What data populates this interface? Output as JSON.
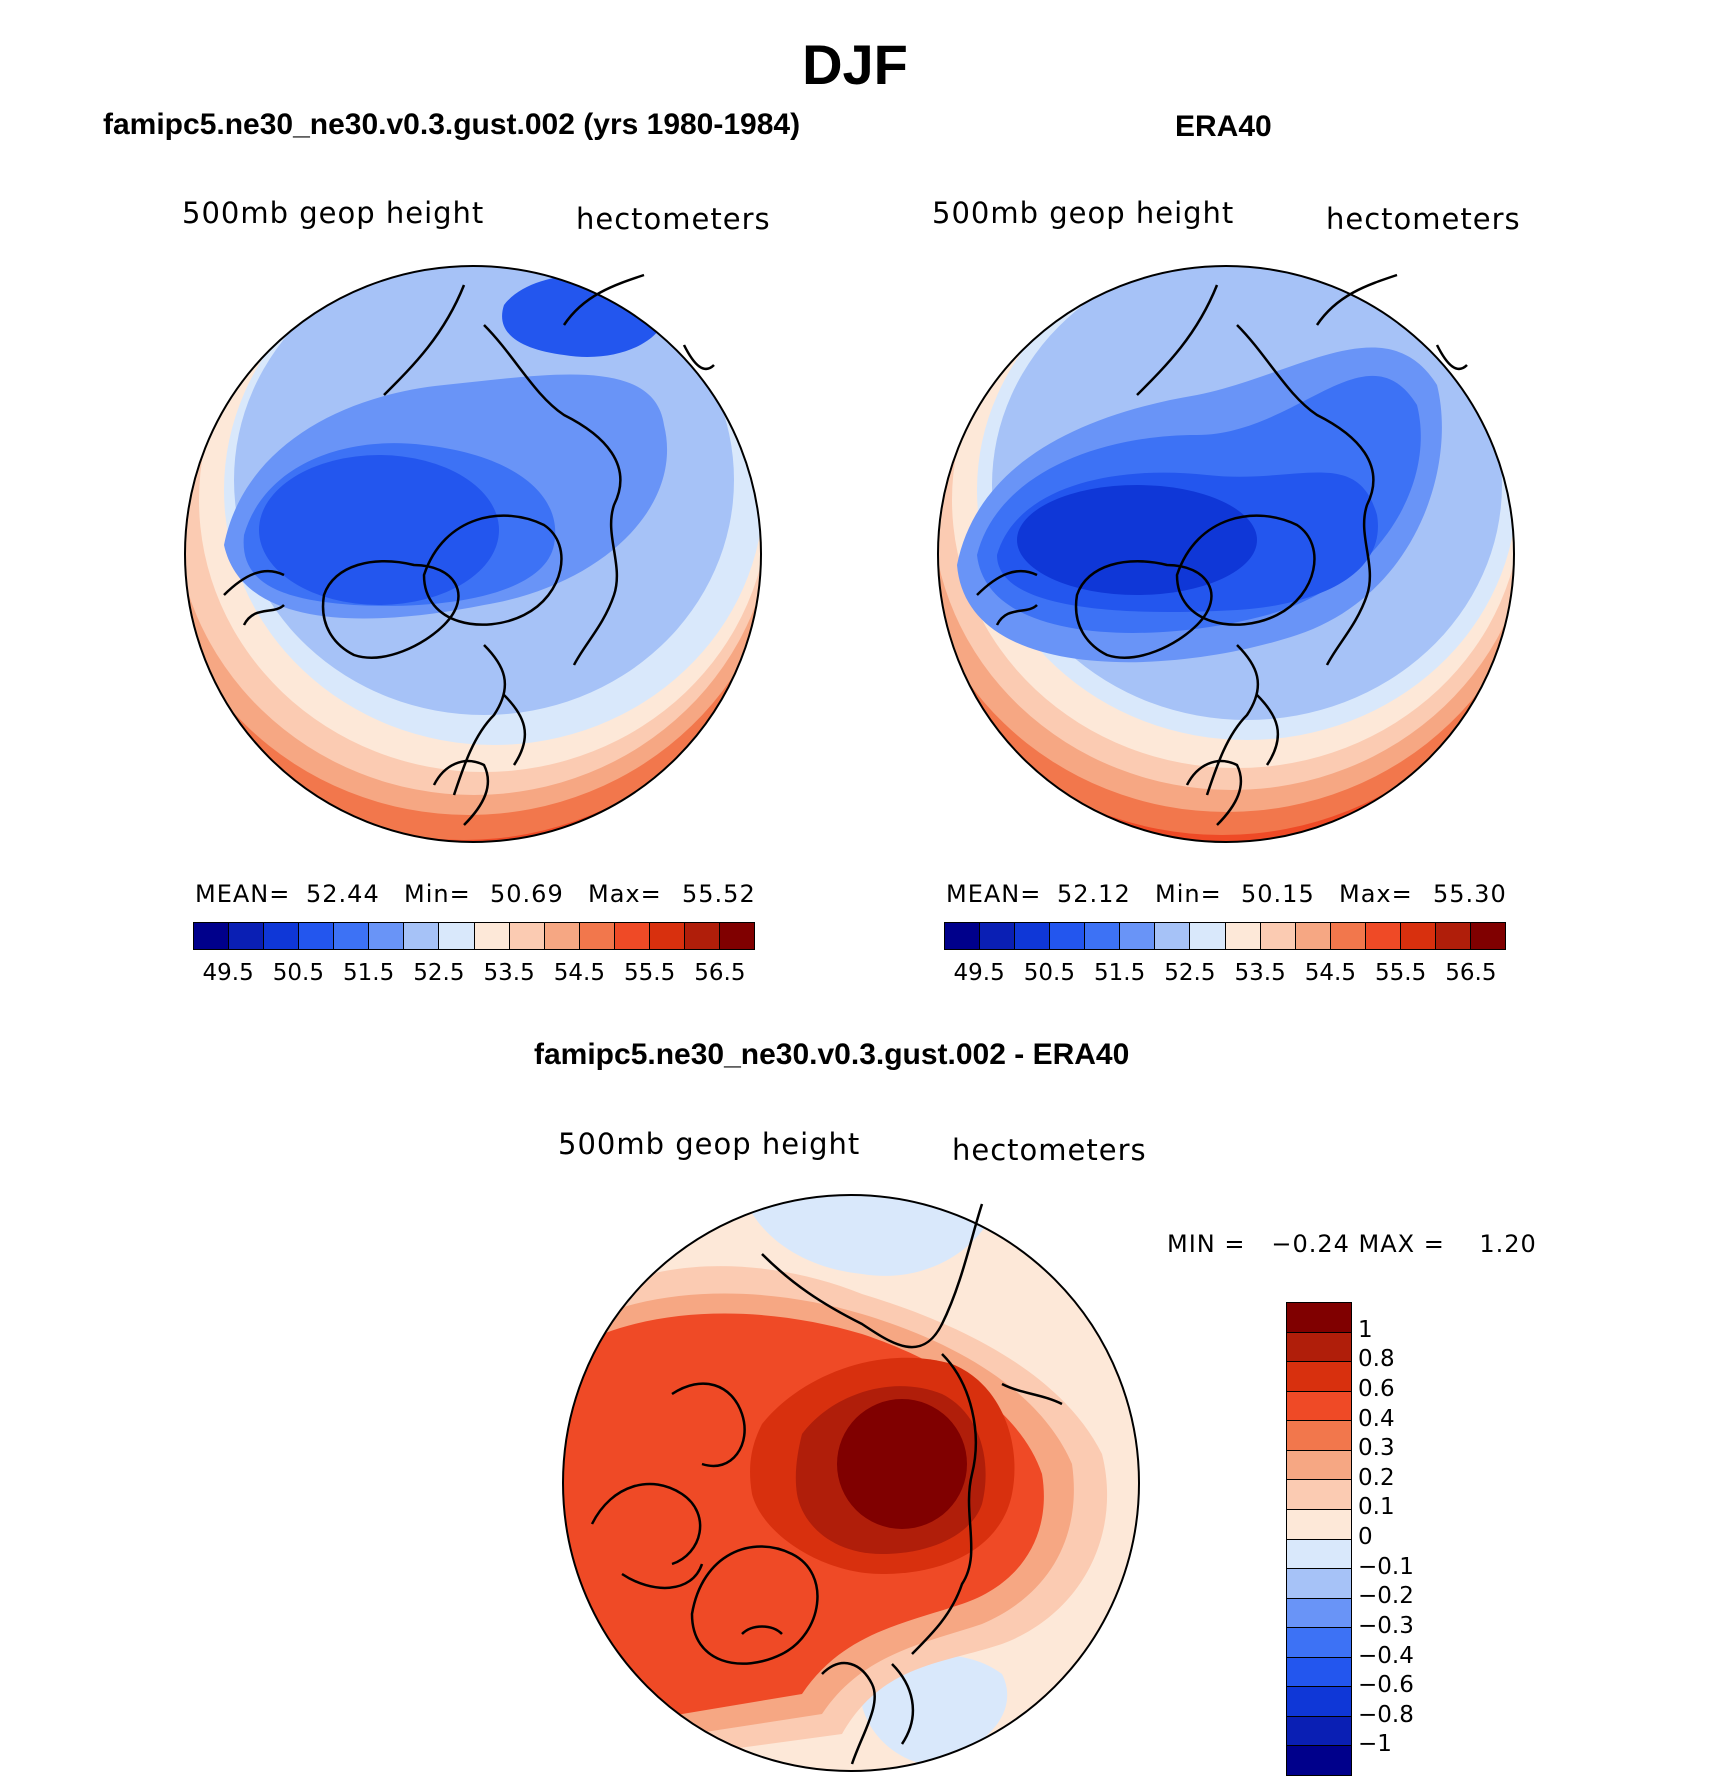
{
  "title": "DJF",
  "panels": [
    {
      "title": "famipc5.ne30_ne30.v0.3.gust.002 (yrs 1980-1984)",
      "left_label": "500mb geop height",
      "right_label": "hectometers",
      "stats": {
        "mean_label": "MEAN=",
        "mean": "52.44",
        "min_label": "Min=",
        "min": "50.69",
        "max_label": "Max=",
        "max": "55.52"
      }
    },
    {
      "title": "ERA40",
      "left_label": "500mb geop height",
      "right_label": "hectometers",
      "stats": {
        "mean_label": "MEAN=",
        "mean": "52.12",
        "min_label": "Min=",
        "min": "50.15",
        "max_label": "Max=",
        "max": "55.30"
      }
    }
  ],
  "diff_panel": {
    "title": "famipc5.ne30_ne30.v0.3.gust.002 - ERA40",
    "left_label": "500mb geop height",
    "right_label": "hectometers",
    "minmax": "MIN =   −0.24 MAX =    1.20"
  },
  "chart_data": [
    {
      "type": "heatmap",
      "projection": "north polar stereographic",
      "variable": "500mb geop height",
      "units": "hectometers",
      "mean": 52.44,
      "min": 50.69,
      "max": 55.52,
      "levels": [
        49.5,
        50.5,
        51.5,
        52.5,
        53.5,
        54.5,
        55.5,
        56.5
      ]
    },
    {
      "type": "heatmap",
      "projection": "north polar stereographic",
      "variable": "500mb geop height",
      "units": "hectometers",
      "mean": 52.12,
      "min": 50.15,
      "max": 55.3,
      "levels": [
        49.5,
        50.5,
        51.5,
        52.5,
        53.5,
        54.5,
        55.5,
        56.5
      ]
    },
    {
      "type": "heatmap",
      "projection": "north polar stereographic",
      "variable": "500mb geop height difference",
      "units": "hectometers",
      "min": -0.24,
      "max": 1.2,
      "levels": [
        "1",
        "0.8",
        "0.6",
        "0.4",
        "0.3",
        "0.2",
        "0.1",
        "0",
        "−0.1",
        "−0.2",
        "−0.3",
        "−0.4",
        "−0.6",
        "−0.8",
        "−1"
      ]
    }
  ],
  "colors": {
    "abs_scale": [
      "#00008b",
      "#0a1fb4",
      "#0f37d7",
      "#2356ee",
      "#3d72f5",
      "#6994f7",
      "#a6c2f7",
      "#d9e8fb",
      "#fde8d8",
      "#fbcbb2",
      "#f6a783",
      "#f2774c",
      "#ef4a26",
      "#d8300e",
      "#b01e0a",
      "#800000"
    ],
    "diff_scale": [
      "#800000",
      "#b01e0a",
      "#d8300e",
      "#ef4a26",
      "#f2774c",
      "#f6a783",
      "#fbcbb2",
      "#fde8d8",
      "#d9e8fb",
      "#a6c2f7",
      "#6994f7",
      "#3d72f5",
      "#2356ee",
      "#0f37d7",
      "#0a1fb4",
      "#00008b"
    ]
  }
}
